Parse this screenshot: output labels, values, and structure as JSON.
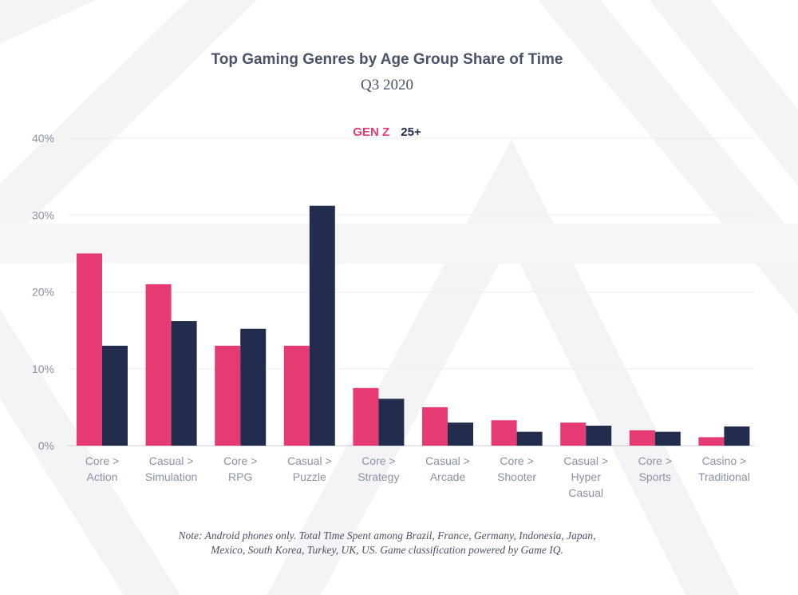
{
  "chart_data": {
    "type": "bar",
    "title": "Top Gaming Genres by Age Group Share of Time",
    "subtitle": "Q3 2020",
    "categories": [
      [
        "Core >",
        "Action"
      ],
      [
        "Casual >",
        "Simulation"
      ],
      [
        "Core >",
        "RPG"
      ],
      [
        "Casual >",
        "Puzzle"
      ],
      [
        "Core >",
        "Strategy"
      ],
      [
        "Casual >",
        "Arcade"
      ],
      [
        "Core >",
        "Shooter"
      ],
      [
        "Casual >",
        "Hyper",
        "Casual"
      ],
      [
        "Core >",
        "Sports"
      ],
      [
        "Casino >",
        "Traditional"
      ]
    ],
    "series": [
      {
        "name": "GEN Z",
        "color": "#e63a72",
        "values": [
          25,
          21,
          13,
          13,
          7.5,
          5,
          3.3,
          3,
          2,
          1.1
        ]
      },
      {
        "name": "25+",
        "color": "#222d4e",
        "values": [
          13,
          16.2,
          15.2,
          31.2,
          6.1,
          3,
          1.8,
          2.6,
          1.8,
          2.5
        ]
      }
    ],
    "ylim": [
      0,
      40
    ],
    "yticks": [
      "0%",
      "10%",
      "20%",
      "30%",
      "40%"
    ],
    "grid": true,
    "legend_position": "top-center"
  },
  "note": "Note: Android phones only. Total Time Spent among Brazil, France, Germany, Indonesia, Japan, Mexico, South Korea, Turkey, UK, US. Game classification powered by Game IQ."
}
